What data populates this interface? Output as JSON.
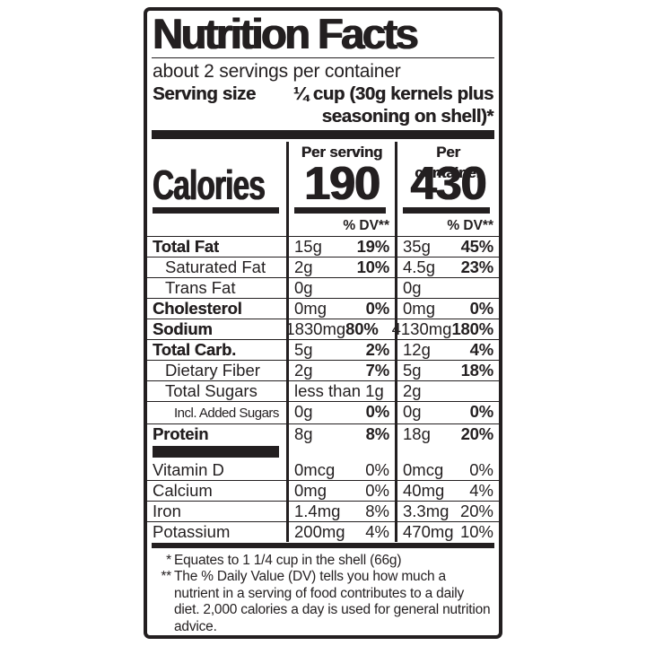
{
  "label": {
    "title": "Nutrition Facts",
    "servings_per_container": "about 2 servings per container",
    "serving_size_label": "Serving size",
    "serving_size_line1": "¼ cup (30g kernels plus",
    "serving_size_line2": "seasoning on shell)*",
    "calories": {
      "label": "Calories",
      "per_serving_header": "Per serving",
      "per_container_header": "Per container",
      "per_serving_value": "190",
      "per_container_value": "430"
    },
    "dv_header": "% DV**",
    "nutrients": [
      {
        "name": "Total Fat",
        "bold": true,
        "indent": 0,
        "serving_amount": "15g",
        "serving_dv": "19%",
        "container_amount": "35g",
        "container_dv": "45%"
      },
      {
        "name": "Saturated Fat",
        "bold": false,
        "indent": 1,
        "serving_amount": "2g",
        "serving_dv": "10%",
        "container_amount": "4.5g",
        "container_dv": "23%"
      },
      {
        "name": "Trans Fat",
        "bold": false,
        "indent": 1,
        "serving_amount": "0g",
        "serving_dv": "",
        "container_amount": "0g",
        "container_dv": ""
      },
      {
        "name": "Cholesterol",
        "bold": true,
        "indent": 0,
        "serving_amount": "0mg",
        "serving_dv": "0%",
        "container_amount": "0mg",
        "container_dv": "0%"
      },
      {
        "name": "Sodium",
        "bold": true,
        "indent": 0,
        "serving_amount": "1830mg",
        "serving_dv": "80%",
        "container_amount": "4130mg",
        "container_dv": "180%"
      },
      {
        "name": "Total Carb.",
        "bold": true,
        "indent": 0,
        "serving_amount": "5g",
        "serving_dv": "2%",
        "container_amount": "12g",
        "container_dv": "4%"
      },
      {
        "name": "Dietary Fiber",
        "bold": false,
        "indent": 1,
        "serving_amount": "2g",
        "serving_dv": "7%",
        "container_amount": "5g",
        "container_dv": "18%"
      },
      {
        "name": "Total Sugars",
        "bold": false,
        "indent": 1,
        "serving_amount": "less than 1g",
        "serving_dv": "",
        "container_amount": "2g",
        "container_dv": ""
      },
      {
        "name": "Incl. Added Sugars",
        "bold": false,
        "indent": 2,
        "small": true,
        "serving_amount": "0g",
        "serving_dv": "0%",
        "container_amount": "0g",
        "container_dv": "0%"
      },
      {
        "name": "Protein",
        "bold": true,
        "indent": 0,
        "serving_amount": "8g",
        "serving_dv": "8%",
        "container_amount": "18g",
        "container_dv": "20%"
      }
    ],
    "vitamins": [
      {
        "name": "Vitamin D",
        "serving_amount": "0mcg",
        "serving_dv": "0%",
        "container_amount": "0mcg",
        "container_dv": "0%"
      },
      {
        "name": "Calcium",
        "serving_amount": "0mg",
        "serving_dv": "0%",
        "container_amount": "40mg",
        "container_dv": "4%"
      },
      {
        "name": "Iron",
        "serving_amount": "1.4mg",
        "serving_dv": "8%",
        "container_amount": "3.3mg",
        "container_dv": "20%"
      },
      {
        "name": "Potassium",
        "serving_amount": "200mg",
        "serving_dv": "4%",
        "container_amount": "470mg",
        "container_dv": "10%"
      }
    ],
    "footnotes": [
      {
        "marker": "*",
        "text": "Equates to 1 1/4 cup in the shell (66g)"
      },
      {
        "marker": "**",
        "text": "The % Daily Value (DV) tells you how much a nutrient in a serving of food contributes to a daily diet. 2,000 calories a day is used for general nutrition advice."
      }
    ]
  },
  "colors": {
    "ink": "#231f20",
    "paper": "#ffffff"
  }
}
